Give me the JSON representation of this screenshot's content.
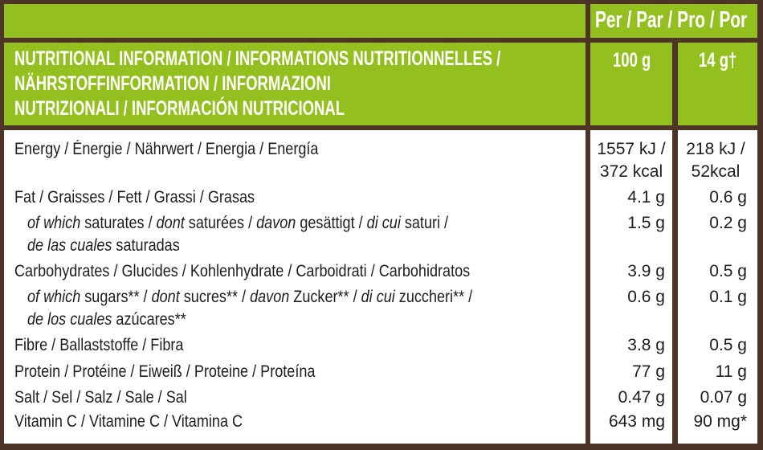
{
  "header": {
    "per_label": "Per / Par / Pro / Por",
    "title_lines": [
      "NUTRITIONAL INFORMATION / INFORMATIONS NUTRITIONNELLES /",
      "NÄHRSTOFFINFORMATION / INFORMAZIONI",
      "NUTRIZIONALI / INFORMACIÓN NUTRICIONAL"
    ],
    "col_100g": "100 g",
    "col_portion": "14 g†"
  },
  "colors": {
    "green": "#93bf1f",
    "brown": "#4e3427",
    "text": "#1d1d1b"
  },
  "rows": [
    {
      "name": "energy",
      "indent": false,
      "lines": [
        [
          {
            "t": "Energy / Énergie / Nährwert / Energia / Energía"
          }
        ]
      ],
      "v100": [
        "1557 kJ /",
        "372 kcal"
      ],
      "vportion": [
        "218 kJ /",
        "52kcal"
      ]
    },
    {
      "name": "fat",
      "indent": false,
      "lines": [
        [
          {
            "t": "Fat / Graisses / Fett / Grassi / Grasas"
          }
        ]
      ],
      "v100": [
        "4.1 g"
      ],
      "vportion": [
        "0.6 g"
      ]
    },
    {
      "name": "saturates",
      "indent": true,
      "lines": [
        [
          {
            "t": "of which",
            "i": true
          },
          {
            "t": " saturates / "
          },
          {
            "t": "dont",
            "i": true
          },
          {
            "t": " saturées / "
          },
          {
            "t": "davon",
            "i": true
          },
          {
            "t": " gesättigt / "
          },
          {
            "t": "di cui",
            "i": true
          },
          {
            "t": " saturi /"
          }
        ],
        [
          {
            "t": "de las cuales",
            "i": true
          },
          {
            "t": " saturadas"
          }
        ]
      ],
      "v100": [
        "1.5 g"
      ],
      "vportion": [
        "0.2 g"
      ]
    },
    {
      "name": "carbohydrates",
      "indent": false,
      "lines": [
        [
          {
            "t": "Carbohydrates / Glucides / Kohlenhydrate / Carboidrati / Carbohidratos"
          }
        ]
      ],
      "v100": [
        "3.9 g"
      ],
      "vportion": [
        "0.5 g"
      ]
    },
    {
      "name": "sugars",
      "indent": true,
      "lines": [
        [
          {
            "t": "of which",
            "i": true
          },
          {
            "t": " sugars** / "
          },
          {
            "t": "dont",
            "i": true
          },
          {
            "t": " sucres** / "
          },
          {
            "t": "davon",
            "i": true
          },
          {
            "t": " Zucker** / "
          },
          {
            "t": "di cui",
            "i": true
          },
          {
            "t": " zuccheri** /"
          }
        ],
        [
          {
            "t": "de los cuales",
            "i": true
          },
          {
            "t": " azúcares**"
          }
        ]
      ],
      "v100": [
        "0.6 g"
      ],
      "vportion": [
        "0.1 g"
      ]
    },
    {
      "name": "fibre",
      "indent": false,
      "lines": [
        [
          {
            "t": "Fibre / Ballaststoffe / Fibra"
          }
        ]
      ],
      "v100": [
        "3.8 g"
      ],
      "vportion": [
        "0.5 g"
      ]
    },
    {
      "name": "protein",
      "indent": false,
      "lines": [
        [
          {
            "t": "Protein / Protéine / Eiweiß / Proteine / Proteína"
          }
        ]
      ],
      "v100": [
        "77 g"
      ],
      "vportion": [
        "11 g"
      ]
    },
    {
      "name": "salt",
      "indent": false,
      "lines": [
        [
          {
            "t": "Salt / Sel / Salz / Sale / Sal"
          }
        ]
      ],
      "v100": [
        "0.47 g"
      ],
      "vportion": [
        "0.07 g"
      ]
    },
    {
      "name": "vitamin-c",
      "indent": false,
      "lines": [
        [
          {
            "t": "Vitamin C / Vitamine C / Vitamina C"
          }
        ]
      ],
      "v100": [
        "643 mg"
      ],
      "vportion": [
        "90 mg*"
      ]
    }
  ]
}
